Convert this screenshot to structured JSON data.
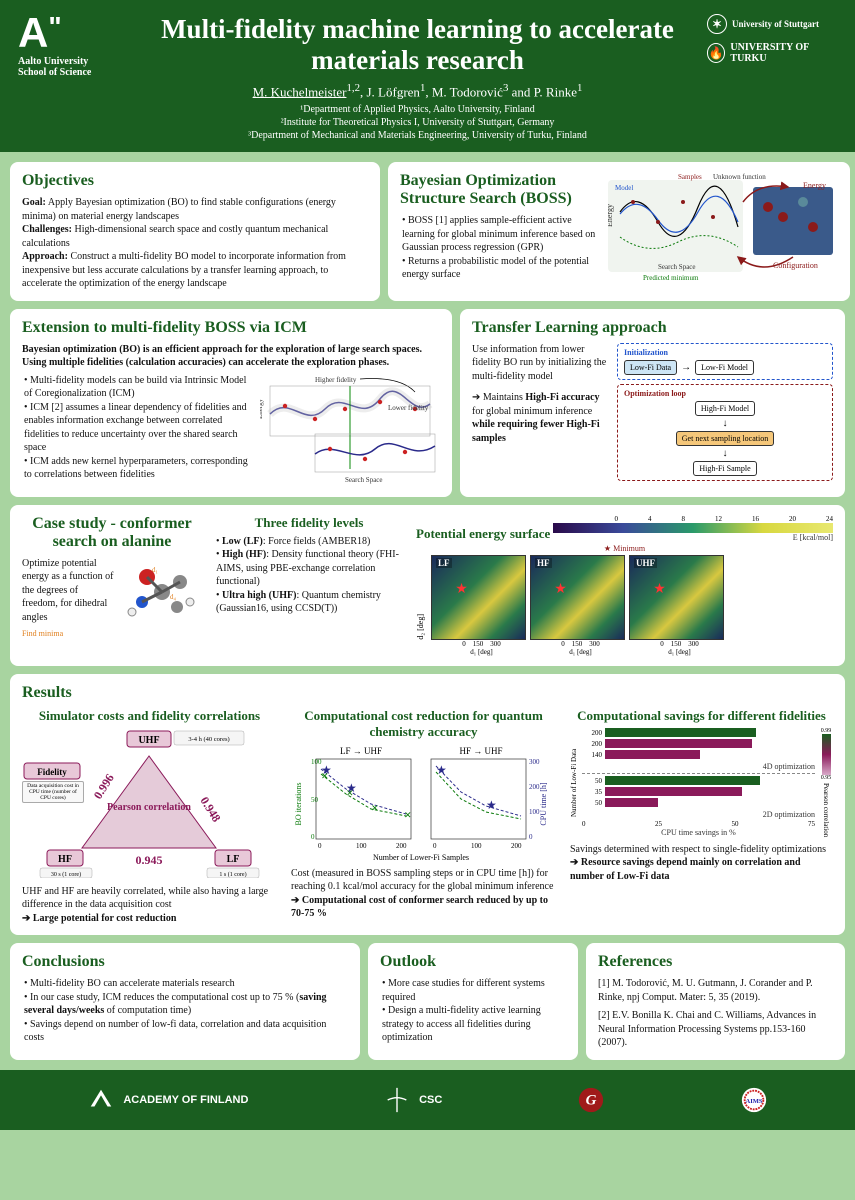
{
  "header": {
    "logo_left_main": "A\"",
    "logo_left_sub": "Aalto University\nSchool of Science",
    "title": "Multi-fidelity machine learning to accelerate materials research",
    "authors_html": "M. Kuchelmeister¹·², J. Löfgren¹, M. Todorović³ and P. Rinke¹",
    "author_underline": "M. Kuchelmeister",
    "affil1": "¹Department of Applied Physics, Aalto University, Finland",
    "affil2": "²Institute for Theoretical Physics I, University of Stuttgart, Germany",
    "affil3": "³Department of Mechanical and Materials Engineering, University of Turku, Finland",
    "logo_right_1": "University of Stuttgart",
    "logo_right_2": "UNIVERSITY OF TURKU"
  },
  "objectives": {
    "title": "Objectives",
    "goal_label": "Goal:",
    "goal": "Apply Bayesian optimization (BO) to find stable configurations (energy minima) on material energy landscapes",
    "challenges_label": "Challenges:",
    "challenges": "High-dimensional search space and costly quantum mechanical calculations",
    "approach_label": "Approach:",
    "approach": "Construct a multi-fidelity BO model to incorporate information from inexpensive but less accurate calculations by a transfer learning approach, to accelerate the optimization of the energy landscape"
  },
  "boss": {
    "title": "Bayesian Optimization Structure Search (BOSS)",
    "b1": "BOSS [1] applies sample-efficient active learning for global minimum inference based on Gaussian process regression (GPR)",
    "b2": "Returns a probabilistic model of the potential energy surface",
    "diag": {
      "samples": "Samples",
      "unknown": "Unknown function",
      "energy": "Energy",
      "model": "Model",
      "search_space": "Search Space",
      "predicted_min": "Predicted minimum",
      "configuration": "Configuration",
      "ylabel": "Energy"
    }
  },
  "icm": {
    "title": "Extension to multi-fidelity BOSS via ICM",
    "intro": "Bayesian optimization (BO) is an efficient approach for the exploration of large search spaces. Using multiple fidelities (calculation accuracies) can accelerate the exploration phases.",
    "b1": "Multi-fidelity models can be build via Intrinsic Model of Coregionalization (ICM)",
    "b2": "ICM [2] assumes a linear dependency of fidelities and enables information exchange between correlated fidelities to reduce uncertainty over the shared search space",
    "b3": "ICM adds new kernel hyperparameters, corresponding to correlations between fidelities",
    "diag": {
      "higher": "Higher fidelity",
      "lower": "Lower fidelity",
      "ylabel": "Energy",
      "xlabel": "Search Space"
    }
  },
  "transfer": {
    "title": "Transfer Learning approach",
    "p1": "Use information from lower fidelity BO run by initializing the multi-fidelity model",
    "p2a": "Maintains ",
    "p2b": "High-Fi accuracy",
    "p2c": " for global minimum inference ",
    "p2d": "while requiring fewer High-Fi samples",
    "flow": {
      "init_title": "Initialization",
      "loop_title": "Optimization loop",
      "lowfi_data": "Low-Fi Data",
      "lowfi_model": "Low-Fi Model",
      "highfi_model": "High-Fi Model",
      "get_next": "Get next sampling location",
      "highfi_sample": "High-Fi Sample"
    }
  },
  "casestudy": {
    "title": "Case study - conformer search on alanine",
    "p1": "Optimize potential energy as a function of the degrees of freedom, for dihedral angles",
    "find_minima": "Find minima",
    "fidelities_title": "Three fidelity levels",
    "lf_label": "Low (LF)",
    "lf": ": Force fields (AMBER18)",
    "hf_label": "High (HF)",
    "hf": ": Density functional theory (FHI-AIMS, using PBE-exchange correlation functional)",
    "uhf_label": "Ultra high (UHF)",
    "uhf": ": Quantum chemistry (Gaussian16, using CCSD(T))",
    "pes_title": "Potential energy surface",
    "minimum": "Minimum",
    "cbar_label": "E [kcal/mol]",
    "cbar_ticks": [
      "0",
      "4",
      "8",
      "12",
      "16",
      "20",
      "24"
    ],
    "panels": [
      "LF",
      "HF",
      "UHF"
    ],
    "xlabel": "d₁ [deg]",
    "ylabel": "d₂ [deg]",
    "ticks": [
      "0",
      "150",
      "300"
    ]
  },
  "results": {
    "title": "Results",
    "sub1": "Simulator costs and fidelity correlations",
    "triangle": {
      "fidelity": "Fidelity",
      "fidelity_sub": "Data acquisition cost in CPU time (number of CPU cores)",
      "uhf": "UHF",
      "uhf_cost": "3-4 h (40 cores)",
      "hf": "HF",
      "hf_cost": "30 s (1 core)",
      "lf": "LF",
      "lf_cost": "1 s (1 core)",
      "center": "Pearson correlation",
      "c_uhf_hf": "0.996",
      "c_uhf_lf": "0.948",
      "c_hf_lf": "0.945"
    },
    "tri_note": "UHF and HF are heavily correlated, while also having a large difference in the data acquisition cost",
    "tri_arrow": "Large potential for cost reduction",
    "sub2": "Computational cost reduction for quantum chemistry accuracy",
    "chart2": {
      "panel1": "LF → UHF",
      "panel2": "HF → UHF",
      "ylabel_left": "BO iterations",
      "ylabel_right": "CPU time [h]",
      "xlabel": "Number of Lower-Fi Samples",
      "y_left_ticks": [
        "0",
        "50",
        "100"
      ],
      "y_right_ticks": [
        "0",
        "100",
        "200",
        "300"
      ],
      "x_ticks": [
        "0",
        "100",
        "200"
      ]
    },
    "c2_note": "Cost (measured in BOSS sampling steps or in CPU time [h]) for reaching 0.1 kcal/mol accuracy for the global minimum inference",
    "c2_arrow": "Computational cost of conformer search reduced by up to 70-75 %",
    "sub3": "Computational savings for different fidelities",
    "chart3": {
      "ylabel": "Number of Low-Fi Data",
      "xlabel": "CPU time savings in %",
      "cbar": "Pearson correlation",
      "cbar_ticks": [
        "0.95",
        "0.97",
        "0.99"
      ],
      "group1": "4D optimization",
      "group2": "2D optimization",
      "rows4d": [
        {
          "label": "200",
          "val": 72,
          "color": "#1a5e20"
        },
        {
          "label": "200",
          "val": 70,
          "color": "#8a1a5a"
        },
        {
          "label": "140",
          "val": 45,
          "color": "#8a1a5a"
        }
      ],
      "rows2d": [
        {
          "label": "50",
          "val": 74,
          "color": "#1a5e20"
        },
        {
          "label": "35",
          "val": 65,
          "color": "#8a1a5a"
        },
        {
          "label": "50",
          "val": 25,
          "color": "#8a1a5a"
        }
      ]
    },
    "c3_note": "Savings determined with respect to single-fidelity optimizations",
    "c3_arrow": "Resource savings depend mainly on correlation and number of Low-Fi data"
  },
  "conclusions": {
    "title": "Conclusions",
    "b1": "Multi-fidelity BO can accelerate materials research",
    "b2": "In our case study, ICM reduces the computational cost up to 75 % (saving several days/weeks of computation time)",
    "b3": "Savings depend on number of low-fi data, correlation and data acquisition costs"
  },
  "outlook": {
    "title": "Outlook",
    "b1": "More case studies for different systems required",
    "b2": "Design a multi-fidelity active learning strategy to access all fidelities during optimization"
  },
  "references": {
    "title": "References",
    "r1": "[1] M. Todorović, M. U. Gutmann, J. Corander and P. Rinke, npj Comput. Mater: 5, 35 (2019).",
    "r2": "[2] E.V. Bonilla K. Chai and C. Williams, Advances in Neural Information Processing Systems pp.153-160 (2007)."
  },
  "footer": {
    "l1": "ACADEMY OF FINLAND",
    "l2": "CSC",
    "l3": "G",
    "l4": "AIMS"
  },
  "colors": {
    "dark_green": "#1a5e20",
    "bg_green": "#a8d4a0",
    "maroon": "#8b1a1a",
    "purple": "#5a2a7a"
  }
}
